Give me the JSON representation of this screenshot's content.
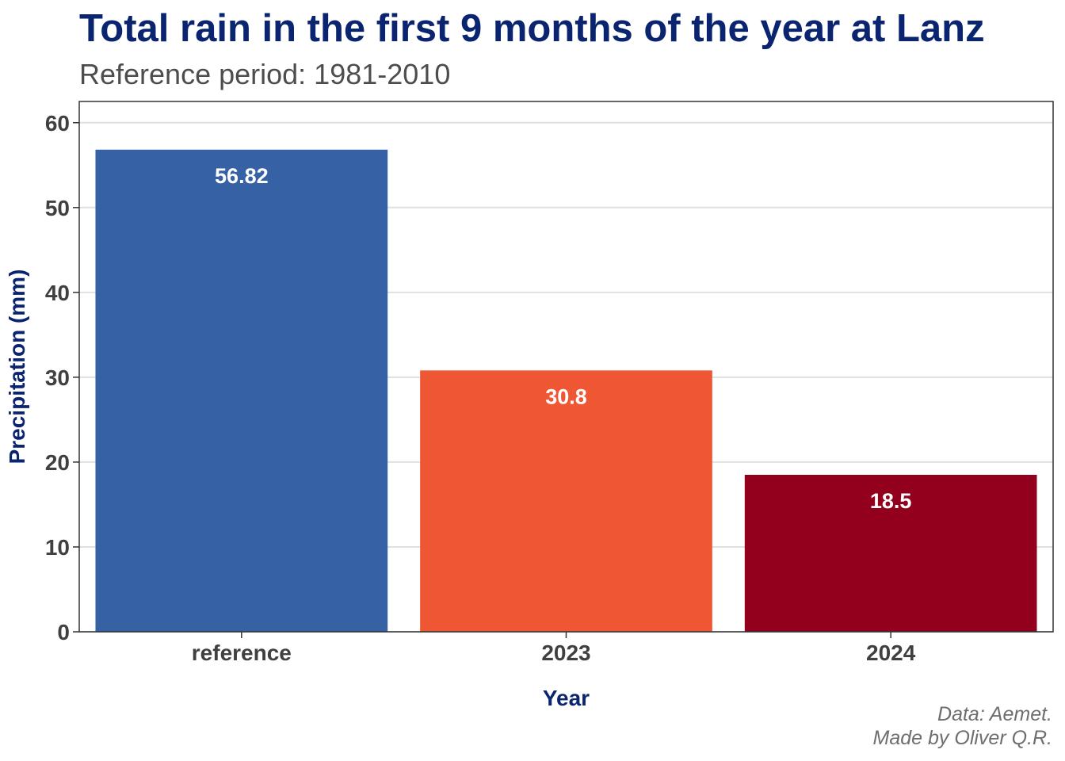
{
  "chart_data": {
    "type": "bar",
    "title": "Total rain in the first 9 months of the year at Lanz",
    "subtitle": "Reference period: 1981-2010",
    "xlabel": "Year",
    "ylabel": "Precipitation (mm)",
    "categories": [
      "reference",
      "2023",
      "2024"
    ],
    "values": [
      56.82,
      30.8,
      18.5
    ],
    "value_labels": [
      "56.82",
      "30.8",
      "18.5"
    ],
    "bar_colors": [
      "#3661a5",
      "#ef5734",
      "#92001e"
    ],
    "ylim": [
      0,
      62.5
    ],
    "yticks": [
      0,
      10,
      20,
      30,
      40,
      50,
      60
    ],
    "grid": "horizontal",
    "legend": "none"
  },
  "caption": {
    "line1": "Data: Aemet.",
    "line2": "Made by Oliver Q.R."
  },
  "colors": {
    "title": "#0b2470",
    "axis_title": "#0b2470",
    "tick_text": "#404040",
    "subtitle": "#4d4d4d",
    "caption": "#6e6e6e",
    "grid": "#e0e0e0",
    "value_label": "#ffffff"
  }
}
